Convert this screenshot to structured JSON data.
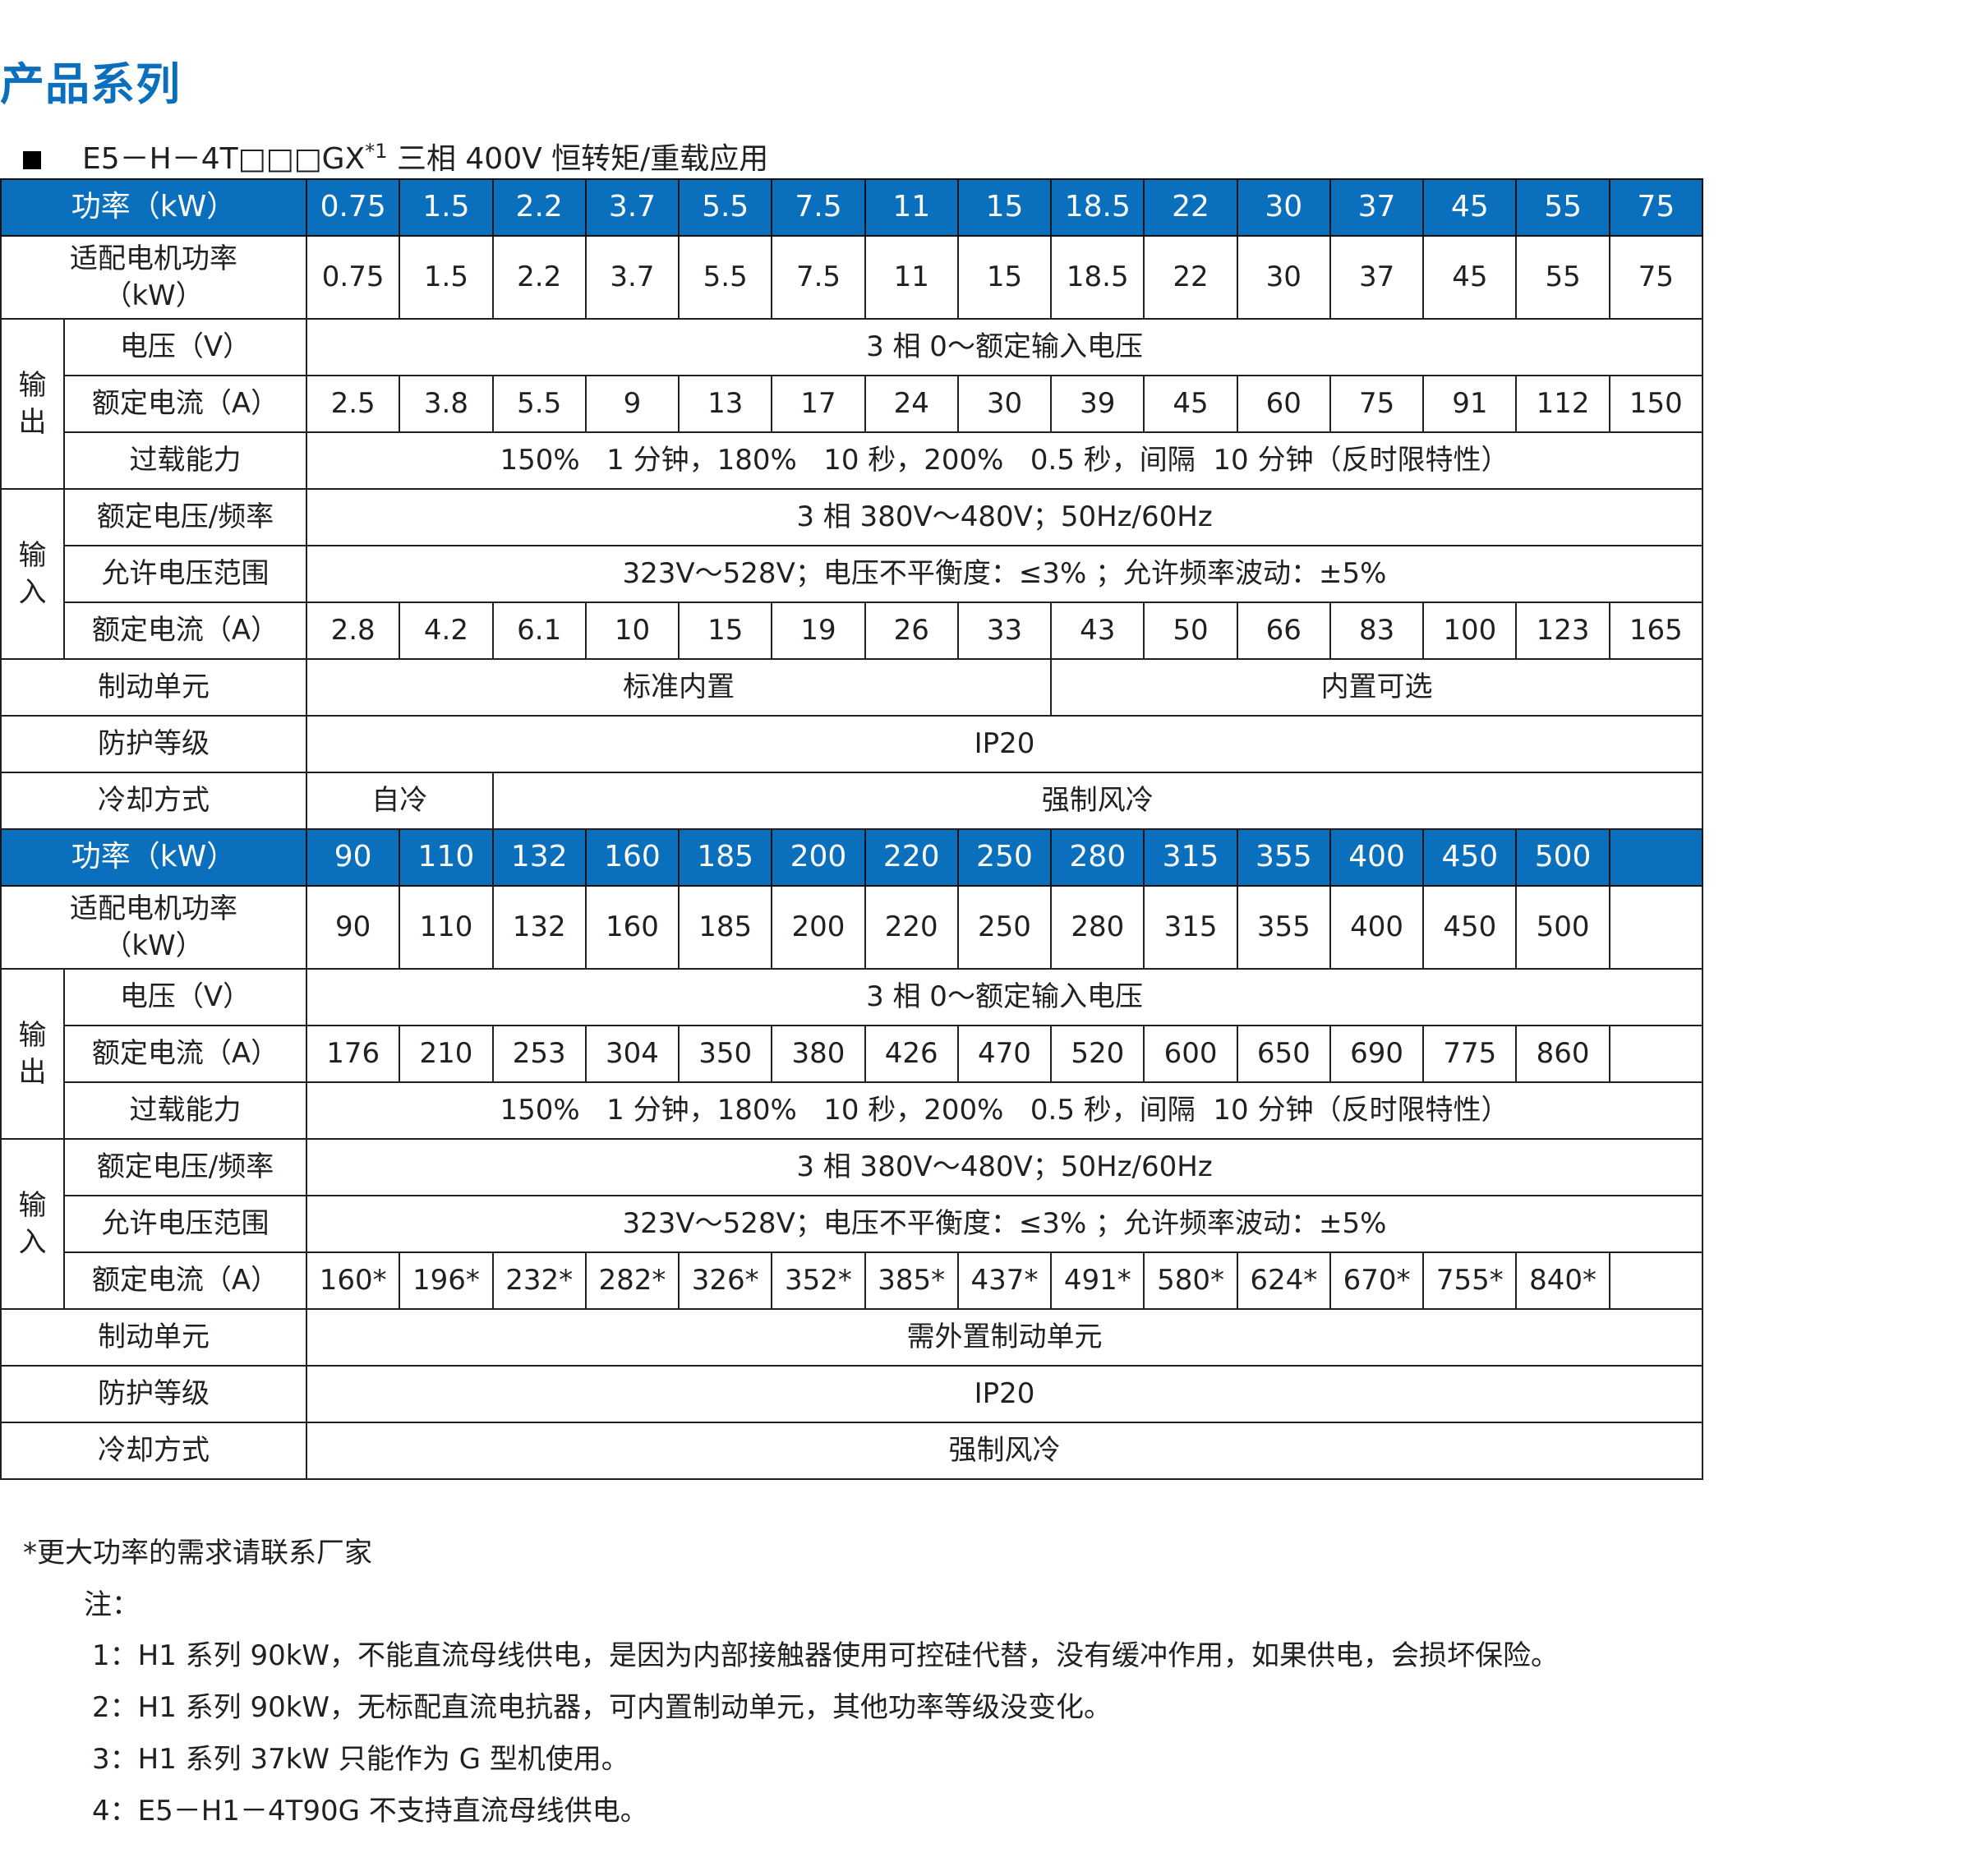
{
  "title": "产品系列",
  "subtitle": {
    "model": "E5－H－4T□□□GX",
    "superscript": "*1",
    "desc": " 三相 400V 恒转矩/重载应用"
  },
  "colors": {
    "header_blue": "#0a70bd",
    "title_blue": "#0a6fbd"
  },
  "blocks": [
    {
      "power_label": "功率（kW）",
      "power": [
        "0.75",
        "1.5",
        "2.2",
        "3.7",
        "5.5",
        "7.5",
        "11",
        "15",
        "18.5",
        "22",
        "30",
        "37",
        "45",
        "55",
        "75"
      ],
      "motor_label": "适配电机功率\n（kW）",
      "motor": [
        "0.75",
        "1.5",
        "2.2",
        "3.7",
        "5.5",
        "7.5",
        "11",
        "15",
        "18.5",
        "22",
        "30",
        "37",
        "45",
        "55",
        "75"
      ],
      "output_label": "输\n出",
      "voltage_label": "电压（V）",
      "voltage_value": "3 相 0～额定输入电压",
      "out_current_label": "额定电流（A）",
      "out_current": [
        "2.5",
        "3.8",
        "5.5",
        "9",
        "13",
        "17",
        "24",
        "30",
        "39",
        "45",
        "60",
        "75",
        "91",
        "112",
        "150"
      ],
      "overload_label": "过载能力",
      "overload_value": "150%   1 分钟，180%   10 秒，200%   0.5 秒，间隔  10 分钟（反时限特性）",
      "input_label": "输\n入",
      "in_voltage_label": "额定电压/频率",
      "in_voltage_value": "3 相 380V～480V；50Hz/60Hz",
      "range_label": "允许电压范围",
      "range_value": "323V～528V；电压不平衡度：≤3% ；允许频率波动：±5%",
      "in_current_label": "额定电流（A）",
      "in_current": [
        "2.8",
        "4.2",
        "6.1",
        "10",
        "15",
        "19",
        "26",
        "33",
        "43",
        "50",
        "66",
        "83",
        "100",
        "123",
        "165"
      ],
      "brake_label": "制动单元",
      "brake": [
        {
          "text": "标准内置",
          "span": 8
        },
        {
          "text": "内置可选",
          "span": 7
        }
      ],
      "ip_label": "防护等级",
      "ip_value": "IP20",
      "cooling_label": "冷却方式",
      "cooling": [
        {
          "text": "自冷",
          "span": 2
        },
        {
          "text": "强制风冷",
          "span": 13
        }
      ]
    },
    {
      "power_label": "功率（kW）",
      "power": [
        "90",
        "110",
        "132",
        "160",
        "185",
        "200",
        "220",
        "250",
        "280",
        "315",
        "355",
        "400",
        "450",
        "500",
        ""
      ],
      "motor_label": "适配电机功率\n（kW）",
      "motor": [
        "90",
        "110",
        "132",
        "160",
        "185",
        "200",
        "220",
        "250",
        "280",
        "315",
        "355",
        "400",
        "450",
        "500",
        ""
      ],
      "output_label": "输\n出",
      "voltage_label": "电压（V）",
      "voltage_value": "3 相 0～额定输入电压",
      "out_current_label": "额定电流（A）",
      "out_current": [
        "176",
        "210",
        "253",
        "304",
        "350",
        "380",
        "426",
        "470",
        "520",
        "600",
        "650",
        "690",
        "775",
        "860",
        ""
      ],
      "overload_label": "过载能力",
      "overload_value": "150%   1 分钟，180%   10 秒，200%   0.5 秒，间隔  10 分钟（反时限特性）",
      "input_label": "输\n入",
      "in_voltage_label": "额定电压/频率",
      "in_voltage_value": "3 相 380V～480V；50Hz/60Hz",
      "range_label": "允许电压范围",
      "range_value": "323V～528V；电压不平衡度：≤3% ；允许频率波动：±5%",
      "in_current_label": "额定电流（A）",
      "in_current": [
        "160*",
        "196*",
        "232*",
        "282*",
        "326*",
        "352*",
        "385*",
        "437*",
        "491*",
        "580*",
        "624*",
        "670*",
        "755*",
        "840*",
        ""
      ],
      "brake_label": "制动单元",
      "brake": [
        {
          "text": "需外置制动单元",
          "span": 15
        }
      ],
      "ip_label": "防护等级",
      "ip_value": "IP20",
      "cooling_label": "冷却方式",
      "cooling": [
        {
          "text": "强制风冷",
          "span": 15
        }
      ]
    }
  ],
  "footnote": "*更大功率的需求请联系厂家",
  "notes_label": "注：",
  "notes": [
    "1：H1 系列 90kW，不能直流母线供电，是因为内部接触器使用可控硅代替，没有缓冲作用，如果供电，会损坏保险。",
    "2：H1 系列 90kW，无标配直流电抗器，可内置制动单元，其他功率等级没变化。",
    "3：H1 系列 37kW 只能作为 G 型机使用。",
    "4：E5－H1－4T90G 不支持直流母线供电。"
  ]
}
